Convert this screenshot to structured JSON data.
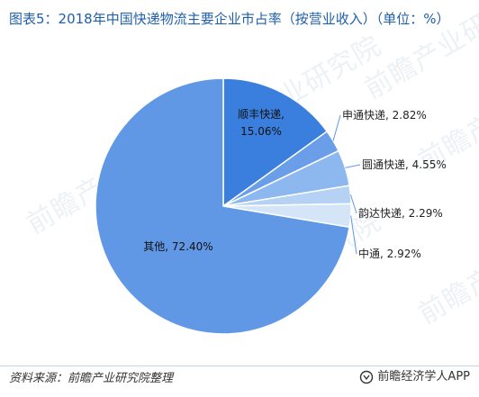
{
  "title": "图表5：2018年中国快递物流主要企业市占率（按营业收入）（单位：%）",
  "watermark_text": "前瞻产业研究院",
  "footer": {
    "source": "资料来源：前瞻产业研究院整理",
    "brand": "前瞻经济学人APP"
  },
  "colors": {
    "other": "#6098e6",
    "sf": "#3a7fde",
    "sto": "#6a9ee8",
    "yto": "#8db8ef",
    "yunda": "#b5d1f4",
    "zto": "#d5e5f8",
    "title": "#1f5fa8",
    "stroke": "#ffffff"
  },
  "chart_data": {
    "type": "pie",
    "title": "图表5：2018年中国快递物流主要企业市占率（按营业收入）（单位：%）",
    "slices": [
      {
        "name": "顺丰快递",
        "value": 15.06,
        "label": "顺丰快递, 15.06%",
        "color_key": "sf"
      },
      {
        "name": "申通快递",
        "value": 2.82,
        "label": "申通快递, 2.82%",
        "color_key": "sto"
      },
      {
        "name": "圆通快递",
        "value": 4.55,
        "label": "圆通快递, 4.55%",
        "color_key": "yto"
      },
      {
        "name": "韵达快递",
        "value": 2.29,
        "label": "韵达快递, 2.29%",
        "color_key": "yunda"
      },
      {
        "name": "中通",
        "value": 2.92,
        "label": "中通, 2.92%",
        "color_key": "zto"
      },
      {
        "name": "其他",
        "value": 72.4,
        "label": "其他, 72.40%",
        "color_key": "other"
      }
    ]
  }
}
